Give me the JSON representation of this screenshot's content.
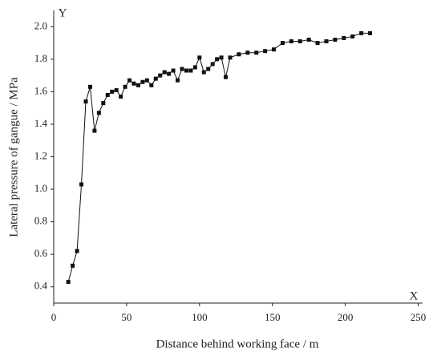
{
  "chart_data": {
    "type": "line",
    "x_label": "Distance behind working face / m",
    "y_label": "Lateral pressure of gangue / MPa",
    "x_axis_end_label": "X",
    "y_axis_end_label": "Y",
    "xlim": [
      0,
      253
    ],
    "ylim": [
      0.3,
      2.1
    ],
    "xticks": [
      0,
      50,
      100,
      150,
      200,
      250
    ],
    "yticks": [
      0.4,
      0.6,
      0.8,
      {
        "value": 1,
        "label": "1.0"
      },
      1.2,
      1.4,
      1.6,
      1.8,
      {
        "value": 2,
        "label": "2.0"
      }
    ],
    "x": [
      10,
      13,
      16,
      19,
      22,
      25,
      28,
      31,
      34,
      37,
      40,
      43,
      46,
      49,
      52,
      55,
      58,
      61,
      64,
      67,
      70,
      73,
      76,
      79,
      82,
      85,
      88,
      91,
      94,
      97,
      100,
      103,
      106,
      109,
      112,
      115,
      118,
      121,
      127,
      133,
      139,
      145,
      151,
      157,
      163,
      169,
      175,
      181,
      187,
      193,
      199,
      205,
      211,
      217
    ],
    "series": [
      {
        "color": "#111111",
        "values": [
          0.43,
          0.53,
          0.62,
          1.03,
          1.54,
          1.63,
          1.36,
          1.47,
          1.53,
          1.58,
          1.6,
          1.61,
          1.57,
          1.63,
          1.67,
          1.65,
          1.64,
          1.66,
          1.67,
          1.64,
          1.68,
          1.7,
          1.72,
          1.71,
          1.73,
          1.67,
          1.74,
          1.73,
          1.73,
          1.75,
          1.81,
          1.72,
          1.74,
          1.77,
          1.8,
          1.81,
          1.69,
          1.81,
          1.83,
          1.84,
          1.84,
          1.85,
          1.86,
          1.9,
          1.91,
          1.91,
          1.92,
          1.9,
          1.91,
          1.92,
          1.93,
          1.94,
          1.96,
          1.96
        ]
      }
    ]
  }
}
